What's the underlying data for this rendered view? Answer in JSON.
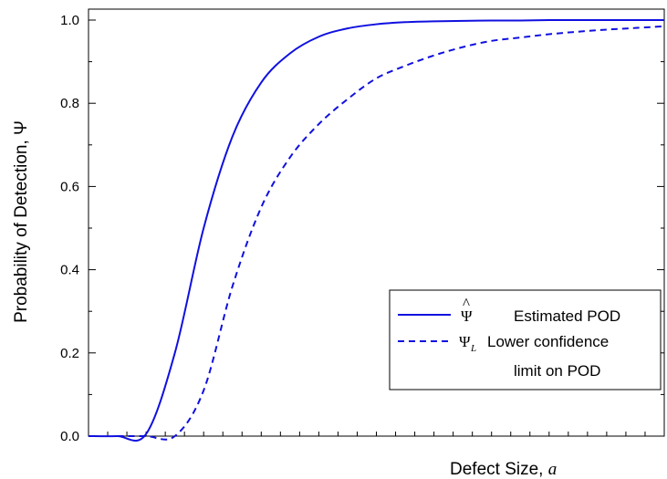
{
  "chart_data": {
    "type": "line",
    "title": "",
    "xlabel_text": "Defect Size, ",
    "xlabel_symbol": "a",
    "ylabel": "Probability of Detection, Ψ",
    "ylim": [
      0.0,
      1.0
    ],
    "yticks": [
      "0.0",
      "0.2",
      "0.4",
      "0.6",
      "0.8",
      "1.0"
    ],
    "x_tick_labels_shown": false,
    "x_minor_ticks": 30,
    "grid": false,
    "legend_position": "bottom-right",
    "colors": {
      "series": "#1010e0",
      "axis": "#000000"
    },
    "x": [
      0.0,
      0.05,
      0.1,
      0.15,
      0.2,
      0.25,
      0.3,
      0.35,
      0.4,
      0.45,
      0.5,
      0.55,
      0.6,
      0.65,
      0.7,
      0.75,
      0.8,
      0.85,
      0.9,
      0.95,
      1.0
    ],
    "series": [
      {
        "legend_symbol": "Ψ̂",
        "name": "Estimated POD",
        "style": "solid",
        "values": [
          0.0,
          0.0,
          0.005,
          0.2,
          0.5,
          0.72,
          0.85,
          0.92,
          0.96,
          0.98,
          0.99,
          0.995,
          0.997,
          0.998,
          0.999,
          0.999,
          1.0,
          1.0,
          1.0,
          1.0,
          1.0
        ]
      },
      {
        "legend_symbol": "Ψ",
        "legend_subscript": "L",
        "name": "Lower confidence limit on POD",
        "name_line1": "Lower confidence",
        "name_line2": "limit on POD",
        "style": "dashed",
        "values": [
          null,
          0.0,
          0.0,
          0.0,
          0.11,
          0.36,
          0.55,
          0.67,
          0.75,
          0.81,
          0.86,
          0.89,
          0.915,
          0.935,
          0.95,
          0.958,
          0.966,
          0.972,
          0.977,
          0.981,
          0.985
        ]
      }
    ]
  }
}
